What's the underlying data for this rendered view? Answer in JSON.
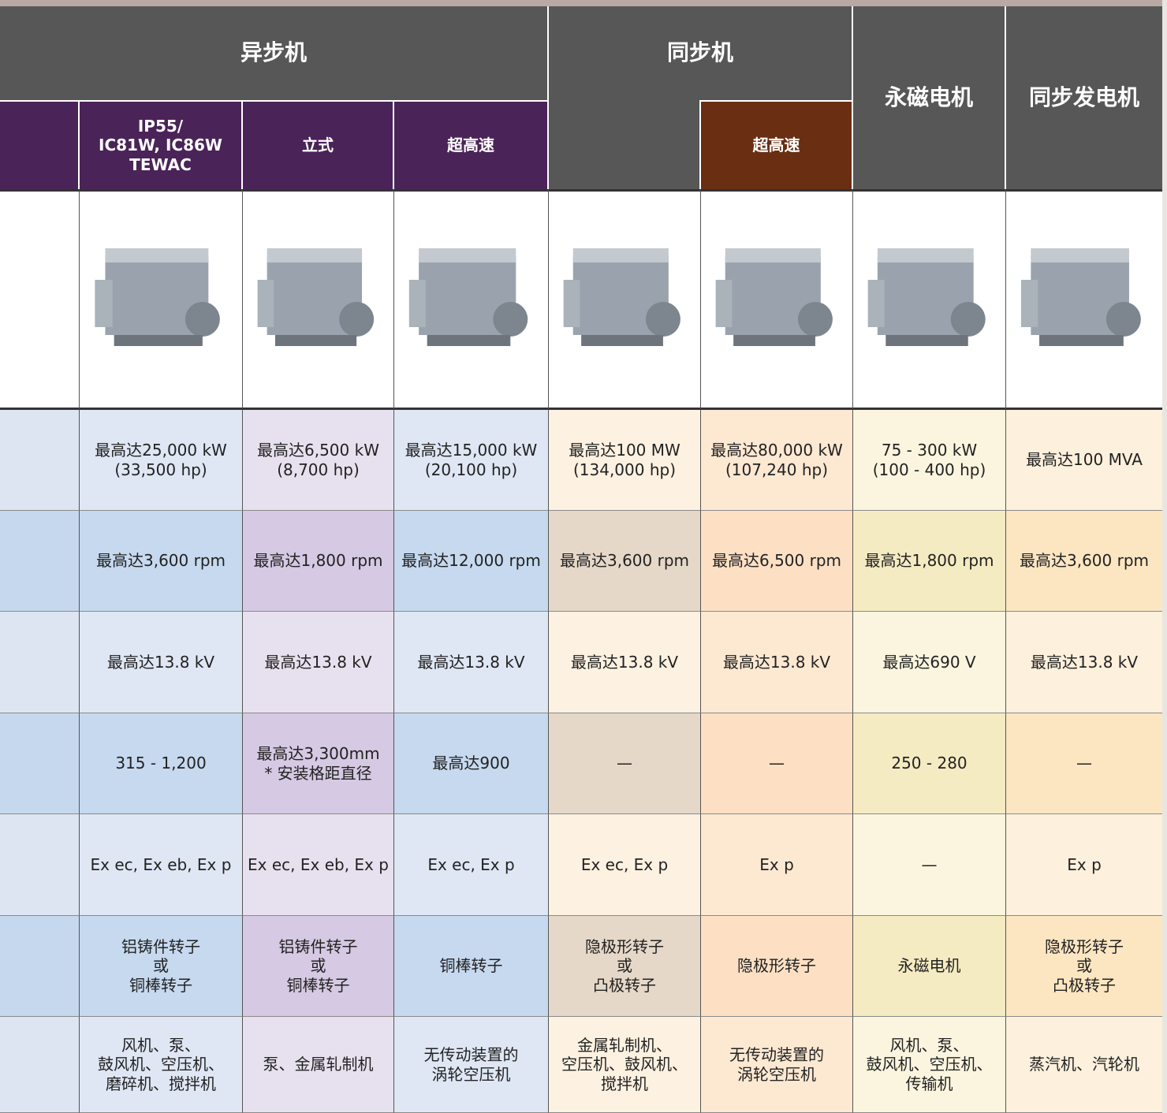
{
  "header": {
    "groups": [
      "异步机",
      "同步机",
      "永磁电机",
      "同步发电机"
    ],
    "subgroups": [
      "IP55/\nIC81W, IC86W\nTEWAC",
      "立式",
      "超高速",
      "超高速"
    ]
  },
  "table": {
    "rows": [
      [
        "最高达25,000 kW\n(33,500 hp)",
        "最高达6,500 kW\n(8,700 hp)",
        "最高达15,000 kW\n(20,100 hp)",
        "最高达100 MW\n(134,000 hp)",
        "最高达80,000 kW\n(107,240 hp)",
        "75 - 300 kW\n(100 - 400 hp)",
        "最高达100 MVA"
      ],
      [
        "最高达3,600 rpm",
        "最高达1,800 rpm",
        "最高达12,000 rpm",
        "最高达3,600 rpm",
        "最高达6,500 rpm",
        "最高达1,800 rpm",
        "最高达3,600 rpm"
      ],
      [
        "最高达13.8 kV",
        "最高达13.8 kV",
        "最高达13.8 kV",
        "最高达13.8 kV",
        "最高达13.8 kV",
        "最高达690 V",
        "最高达13.8 kV"
      ],
      [
        "315 - 1,200",
        "最高达3,300mm\n* 安装格距直径",
        "最高达900",
        "—",
        "—",
        "250 - 280",
        "—"
      ],
      [
        "Ex ec, Ex eb, Ex p",
        "Ex ec, Ex eb, Ex p",
        "Ex ec, Ex p",
        "Ex ec, Ex p",
        "Ex p",
        "—",
        "Ex p"
      ],
      [
        "铝铸件转子\n或\n铜棒转子",
        "铝铸件转子\n或\n铜棒转子",
        "铜棒转子",
        "隐极形转子\n或\n凸极转子",
        "隐极形转子",
        "永磁电机",
        "隐极形转子\n或\n凸极转子"
      ],
      [
        "风机、泵、\n鼓风机、空压机、\n磨碎机、搅拌机",
        "泵、金属轧制机",
        "无传动装置的\n涡轮空压机",
        "金属轧制机、\n空压机、鼓风机、\n搅拌机",
        "无传动装置的\n涡轮空压机",
        "风机、泵、\n鼓风机、空压机、\n传输机",
        "蒸汽机、汽轮机"
      ]
    ]
  }
}
